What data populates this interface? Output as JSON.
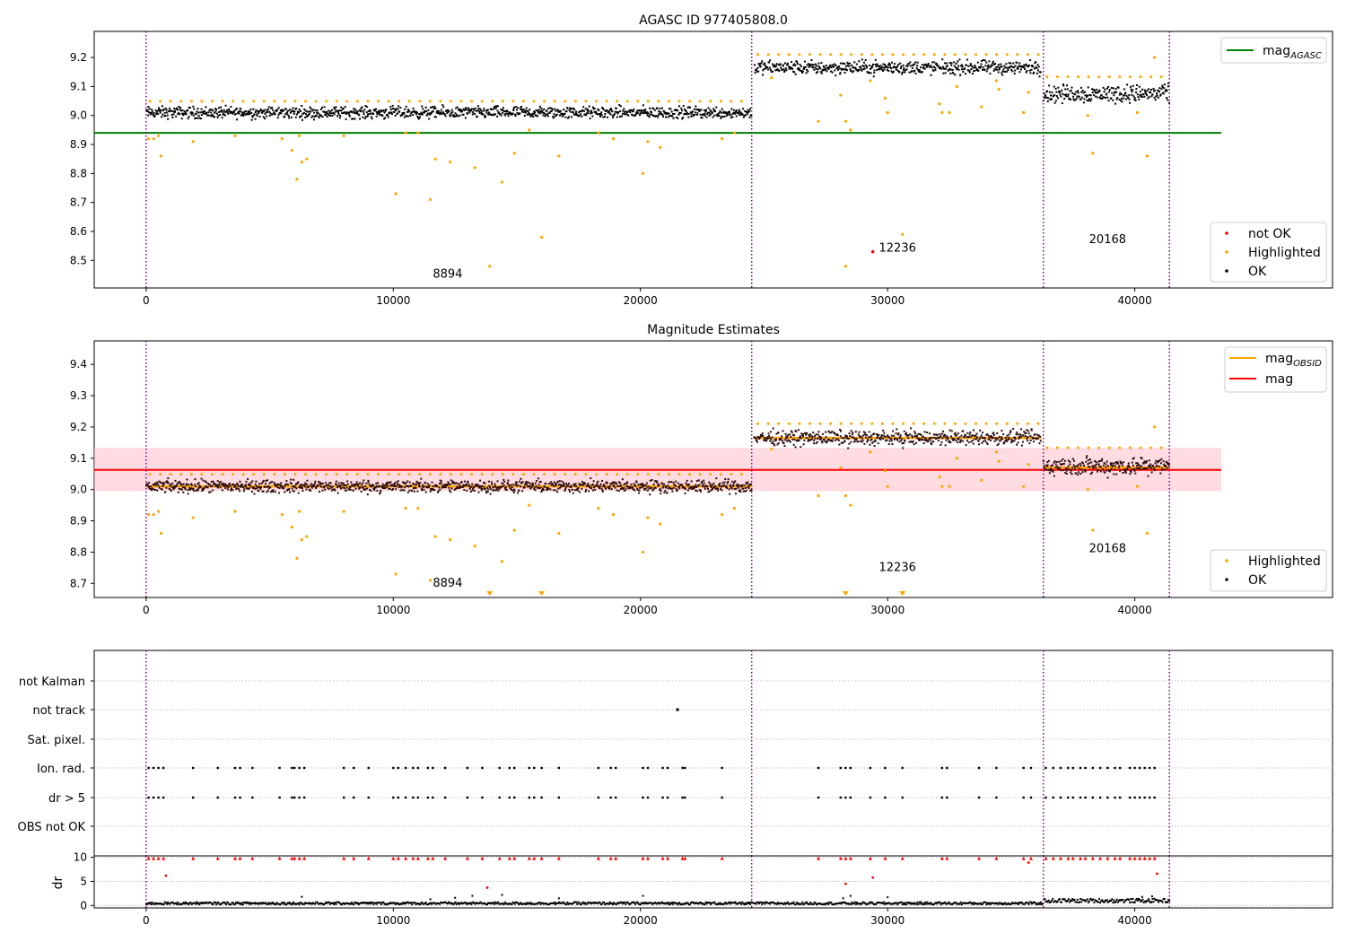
{
  "figure": {
    "vlines_x": [
      0,
      24500,
      36300,
      41400
    ],
    "colors": {
      "ok": "#000000",
      "highlighted": "#ffa500",
      "not_ok": "#ff0000",
      "mag_agasc": "#008000",
      "mag_obsid": "#ffa500",
      "mag": "#ff0000",
      "band": "#ffc0cb",
      "vline": "#800080",
      "grid": "#b0b0b0"
    }
  },
  "chart_data": [
    {
      "type": "scatter",
      "title": "AGASC ID 977405808.0",
      "xlabel": "",
      "ylabel": "",
      "xlim": [
        -2100,
        48000
      ],
      "ylim": [
        8.405,
        9.29
      ],
      "xticks": [
        0,
        10000,
        20000,
        30000,
        40000
      ],
      "yticks": [
        8.5,
        8.6,
        8.7,
        8.8,
        8.9,
        9.0,
        9.1,
        9.2
      ],
      "x_tick_labels": [
        "0",
        "10000",
        "20000",
        "30000",
        "40000"
      ],
      "y_tick_labels": [
        "8.5",
        "8.6",
        "8.7",
        "8.8",
        "8.9",
        "9.0",
        "9.1",
        "9.2"
      ],
      "ok_segments": [
        {
          "x_start": 0,
          "x_end": 24500,
          "center": 9.01,
          "spread": 0.03
        },
        {
          "x_start": 24600,
          "x_end": 36200,
          "center": 9.165,
          "spread": 0.035
        },
        {
          "x_start": 36300,
          "x_end": 41400,
          "center": 9.075,
          "spread": 0.045
        }
      ],
      "highlighted": [
        [
          100,
          8.92
        ],
        [
          300,
          8.92
        ],
        [
          500,
          8.93
        ],
        [
          600,
          8.86
        ],
        [
          1900,
          8.91
        ],
        [
          3600,
          8.93
        ],
        [
          5500,
          8.92
        ],
        [
          5900,
          8.88
        ],
        [
          6100,
          8.78
        ],
        [
          6200,
          8.93
        ],
        [
          6300,
          8.84
        ],
        [
          6500,
          8.85
        ],
        [
          8000,
          8.93
        ],
        [
          10100,
          8.73
        ],
        [
          10500,
          8.94
        ],
        [
          11000,
          8.94
        ],
        [
          11500,
          8.71
        ],
        [
          11700,
          8.85
        ],
        [
          12300,
          8.84
        ],
        [
          13300,
          8.82
        ],
        [
          13900,
          8.48
        ],
        [
          14400,
          8.77
        ],
        [
          14900,
          8.87
        ],
        [
          15500,
          8.95
        ],
        [
          16000,
          8.58
        ],
        [
          16700,
          8.86
        ],
        [
          18300,
          8.94
        ],
        [
          18900,
          8.92
        ],
        [
          20100,
          8.8
        ],
        [
          20300,
          8.91
        ],
        [
          20800,
          8.89
        ],
        [
          23300,
          8.92
        ],
        [
          23800,
          8.94
        ],
        [
          25300,
          9.13
        ],
        [
          27200,
          8.98
        ],
        [
          28100,
          9.07
        ],
        [
          28300,
          8.48
        ],
        [
          28500,
          8.95
        ],
        [
          28300,
          8.98
        ],
        [
          29300,
          9.12
        ],
        [
          29900,
          9.06
        ],
        [
          30000,
          9.01
        ],
        [
          30600,
          8.59
        ],
        [
          32100,
          9.04
        ],
        [
          32200,
          9.01
        ],
        [
          32500,
          9.01
        ],
        [
          32800,
          9.1
        ],
        [
          33800,
          9.03
        ],
        [
          34400,
          9.12
        ],
        [
          34500,
          9.09
        ],
        [
          35500,
          9.01
        ],
        [
          35700,
          9.08
        ],
        [
          38100,
          9.0
        ],
        [
          38300,
          8.87
        ],
        [
          40100,
          9.01
        ],
        [
          40500,
          8.86
        ],
        [
          40800,
          9.2
        ]
      ],
      "not_ok": [
        [
          29400,
          8.53
        ]
      ],
      "annotations": [
        {
          "text": "8894",
          "x": 12200,
          "y": 8.44
        },
        {
          "text": "12236",
          "x": 30400,
          "y": 8.53
        },
        {
          "text": "20168",
          "x": 38900,
          "y": 8.56
        }
      ],
      "hlines": [
        {
          "name": "mag_agasc",
          "y": 8.94,
          "x_end": 43500
        }
      ],
      "legend_upper": {
        "position": "upper right",
        "entries": [
          {
            "label": "mag",
            "subscript": "AGASC"
          }
        ]
      },
      "legend_lower": {
        "position": "lower right",
        "entries": [
          "not OK",
          "Highlighted",
          "OK"
        ]
      }
    },
    {
      "type": "scatter",
      "title": "Magnitude Estimates",
      "xlabel": "",
      "ylabel": "",
      "xlim": [
        -2100,
        48000
      ],
      "ylim": [
        8.655,
        9.475
      ],
      "xticks": [
        0,
        10000,
        20000,
        30000,
        40000
      ],
      "yticks": [
        8.7,
        8.8,
        8.9,
        9.0,
        9.1,
        9.2,
        9.3,
        9.4
      ],
      "x_tick_labels": [
        "0",
        "10000",
        "20000",
        "30000",
        "40000"
      ],
      "y_tick_labels": [
        "8.7",
        "8.8",
        "8.9",
        "9.0",
        "9.1",
        "9.2",
        "9.3",
        "9.4"
      ],
      "ok_segments": [
        {
          "x_start": 0,
          "x_end": 24500,
          "center": 9.01,
          "spread": 0.03
        },
        {
          "x_start": 24600,
          "x_end": 36200,
          "center": 9.165,
          "spread": 0.035
        },
        {
          "x_start": 36300,
          "x_end": 41400,
          "center": 9.075,
          "spread": 0.045
        }
      ],
      "highlighted": [
        [
          100,
          8.92
        ],
        [
          300,
          8.92
        ],
        [
          500,
          8.93
        ],
        [
          600,
          8.86
        ],
        [
          1900,
          8.91
        ],
        [
          3600,
          8.93
        ],
        [
          5500,
          8.92
        ],
        [
          5900,
          8.88
        ],
        [
          6100,
          8.78
        ],
        [
          6200,
          8.93
        ],
        [
          6300,
          8.84
        ],
        [
          6500,
          8.85
        ],
        [
          8000,
          8.93
        ],
        [
          10100,
          8.73
        ],
        [
          10500,
          8.94
        ],
        [
          11000,
          8.94
        ],
        [
          11500,
          8.71
        ],
        [
          11700,
          8.85
        ],
        [
          12300,
          8.84
        ],
        [
          13300,
          8.82
        ],
        [
          14400,
          8.77
        ],
        [
          14900,
          8.87
        ],
        [
          15500,
          8.95
        ],
        [
          16700,
          8.86
        ],
        [
          18300,
          8.94
        ],
        [
          18900,
          8.92
        ],
        [
          20100,
          8.8
        ],
        [
          20300,
          8.91
        ],
        [
          20800,
          8.89
        ],
        [
          23300,
          8.92
        ],
        [
          23800,
          8.94
        ],
        [
          25300,
          9.13
        ],
        [
          27200,
          8.98
        ],
        [
          28100,
          9.07
        ],
        [
          28300,
          8.98
        ],
        [
          28500,
          8.95
        ],
        [
          29300,
          9.12
        ],
        [
          29900,
          9.06
        ],
        [
          30000,
          9.01
        ],
        [
          32100,
          9.04
        ],
        [
          32200,
          9.01
        ],
        [
          32500,
          9.01
        ],
        [
          32800,
          9.1
        ],
        [
          33800,
          9.03
        ],
        [
          34400,
          9.12
        ],
        [
          34500,
          9.09
        ],
        [
          35500,
          9.01
        ],
        [
          35700,
          9.08
        ],
        [
          38100,
          9.0
        ],
        [
          38300,
          8.87
        ],
        [
          40100,
          9.01
        ],
        [
          40500,
          8.86
        ],
        [
          40800,
          9.2
        ]
      ],
      "offscale_markers_x": [
        13900,
        16000,
        28300,
        30600
      ],
      "segment_means": [
        {
          "x_start": 0,
          "x_end": 24500,
          "y": 9.01
        },
        {
          "x_start": 24600,
          "x_end": 36200,
          "y": 9.165
        },
        {
          "x_start": 36300,
          "x_end": 41400,
          "y": 9.07
        }
      ],
      "mag_line": {
        "y": 9.063,
        "x_end": 43500
      },
      "mag_band": {
        "low": 8.995,
        "high": 9.133,
        "x_end": 43500
      },
      "annotations": [
        {
          "text": "8894",
          "x": 12200,
          "y": 8.69
        },
        {
          "text": "12236",
          "x": 30400,
          "y": 8.74
        },
        {
          "text": "20168",
          "x": 38900,
          "y": 8.8
        }
      ],
      "legend_upper": {
        "position": "upper right",
        "entries": [
          {
            "label": "mag",
            "subscript": "OBSID"
          },
          {
            "label": "mag"
          }
        ]
      },
      "legend_lower": {
        "position": "lower right",
        "entries": [
          "Highlighted",
          "OK"
        ]
      }
    },
    {
      "type": "scatter",
      "title": "",
      "xlabel": "",
      "ylabel": "",
      "xlim": [
        -2100,
        48000
      ],
      "categories": [
        "not Kalman",
        "not track",
        "Sat. pixel.",
        "Ion. rad.",
        "dr > 5",
        "OBS not OK"
      ],
      "not_track_x": [
        21500
      ],
      "ion_rad_x": [
        100,
        300,
        500,
        700,
        1900,
        2900,
        3600,
        3800,
        4300,
        5400,
        5900,
        6000,
        6200,
        6400,
        8000,
        8400,
        9000,
        10000,
        10200,
        10500,
        10800,
        11000,
        11400,
        11600,
        12100,
        13000,
        13600,
        14300,
        14700,
        14900,
        15500,
        15700,
        16000,
        16700,
        18300,
        18800,
        19000,
        20100,
        20300,
        20900,
        21100,
        21700,
        21800,
        23300,
        27200,
        28100,
        28300,
        28500,
        29300,
        29900,
        30600,
        32200,
        32400,
        33700,
        34400,
        35500,
        35800,
        36400,
        36700,
        37000,
        37300,
        37500,
        37800,
        38000,
        38300,
        38600,
        38900,
        39200,
        39400,
        39800,
        40000,
        40200,
        40400,
        40600,
        40800
      ]
    },
    {
      "type": "scatter",
      "title": "",
      "xlabel": "",
      "ylabel": "dr",
      "xlim": [
        -2100,
        48000
      ],
      "ylim": [
        -0.5,
        10.3
      ],
      "yticks": [
        0,
        5,
        10
      ],
      "y_tick_labels": [
        "0",
        "5",
        "10"
      ],
      "x_tick_labels": [
        "0",
        "10000",
        "20000",
        "30000",
        "40000"
      ],
      "xticks": [
        0,
        10000,
        20000,
        30000,
        40000
      ],
      "red_high": [
        [
          100,
          9.8
        ],
        [
          300,
          9.8
        ],
        [
          500,
          9.8
        ],
        [
          700,
          9.8
        ],
        [
          1900,
          9.8
        ],
        [
          2900,
          9.8
        ],
        [
          3600,
          9.8
        ],
        [
          3800,
          9.8
        ],
        [
          4300,
          9.8
        ],
        [
          5400,
          9.8
        ],
        [
          5900,
          9.8
        ],
        [
          6000,
          9.8
        ],
        [
          6200,
          9.8
        ],
        [
          6400,
          9.8
        ],
        [
          8000,
          9.8
        ],
        [
          8400,
          9.8
        ],
        [
          9000,
          9.8
        ],
        [
          10000,
          9.8
        ],
        [
          10200,
          9.8
        ],
        [
          10500,
          9.8
        ],
        [
          10800,
          9.8
        ],
        [
          11000,
          9.8
        ],
        [
          11400,
          9.8
        ],
        [
          11600,
          9.8
        ],
        [
          12100,
          9.8
        ],
        [
          13000,
          9.8
        ],
        [
          13600,
          9.8
        ],
        [
          14300,
          9.8
        ],
        [
          14700,
          9.8
        ],
        [
          14900,
          9.8
        ],
        [
          15500,
          9.8
        ],
        [
          15700,
          9.8
        ],
        [
          16000,
          9.8
        ],
        [
          16700,
          9.8
        ],
        [
          18300,
          9.8
        ],
        [
          18800,
          9.8
        ],
        [
          19000,
          9.8
        ],
        [
          20100,
          9.8
        ],
        [
          20300,
          9.8
        ],
        [
          20900,
          9.8
        ],
        [
          21100,
          9.8
        ],
        [
          21700,
          9.8
        ],
        [
          21800,
          9.8
        ],
        [
          23300,
          9.8
        ],
        [
          27200,
          9.8
        ],
        [
          28100,
          9.8
        ],
        [
          28300,
          9.8
        ],
        [
          28500,
          9.8
        ],
        [
          29300,
          9.8
        ],
        [
          29900,
          9.8
        ],
        [
          30600,
          9.8
        ],
        [
          32200,
          9.8
        ],
        [
          32400,
          9.8
        ],
        [
          33700,
          9.8
        ],
        [
          34400,
          9.8
        ],
        [
          35500,
          9.8
        ],
        [
          35800,
          9.8
        ],
        [
          36400,
          9.8
        ],
        [
          36700,
          9.8
        ],
        [
          37000,
          9.8
        ],
        [
          37300,
          9.8
        ],
        [
          37500,
          9.8
        ],
        [
          37800,
          9.8
        ],
        [
          38000,
          9.8
        ],
        [
          38300,
          9.8
        ],
        [
          38600,
          9.8
        ],
        [
          38900,
          9.8
        ],
        [
          39200,
          9.8
        ],
        [
          39400,
          9.8
        ],
        [
          39800,
          9.8
        ],
        [
          40000,
          9.8
        ],
        [
          40200,
          9.8
        ],
        [
          40400,
          9.8
        ],
        [
          40600,
          9.8
        ],
        [
          40800,
          9.8
        ]
      ],
      "red_mid": [
        [
          800,
          6.2
        ],
        [
          13800,
          3.7
        ],
        [
          28300,
          4.5
        ],
        [
          29400,
          5.8
        ],
        [
          35700,
          8.9
        ],
        [
          40900,
          6.6
        ]
      ],
      "black_outliers": [
        [
          6300,
          1.8
        ],
        [
          11500,
          1.3
        ],
        [
          12500,
          1.6
        ],
        [
          13200,
          2.0
        ],
        [
          14400,
          2.2
        ],
        [
          16700,
          1.5
        ],
        [
          20100,
          2.0
        ],
        [
          28200,
          1.5
        ],
        [
          28500,
          2.0
        ],
        [
          30000,
          1.7
        ],
        [
          40300,
          1.8
        ],
        [
          40700,
          1.9
        ]
      ]
    }
  ]
}
